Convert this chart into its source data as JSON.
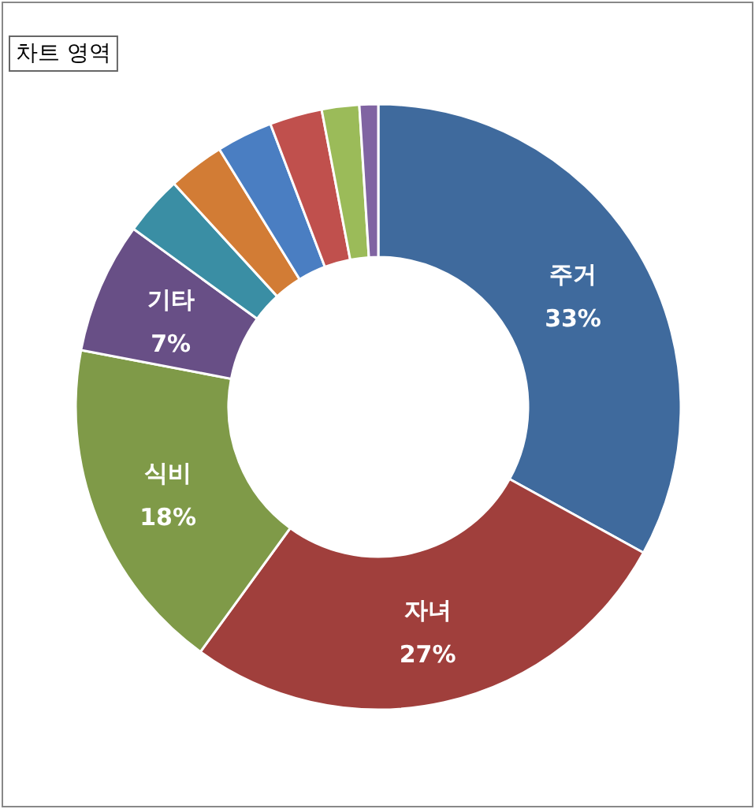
{
  "chart_data": {
    "type": "donut",
    "categories": [
      "주거",
      "자녀",
      "식비",
      "기타",
      null,
      null,
      null,
      null,
      null,
      null
    ],
    "values": [
      33,
      27,
      18,
      7,
      3.2,
      3,
      3,
      2.8,
      2,
      1
    ],
    "value_labels": [
      "33%",
      "27%",
      "18%",
      "7%",
      null,
      null,
      null,
      null,
      null,
      null
    ],
    "colors": [
      "#3f6a9d",
      "#a03f3c",
      "#7f9a48",
      "#684f86",
      "#3a8ea4",
      "#d27c35",
      "#4a7ec2",
      "#c0504d",
      "#9bbb59",
      "#8064a2"
    ],
    "annotations": [
      "차트 영역"
    ],
    "legend": false
  }
}
